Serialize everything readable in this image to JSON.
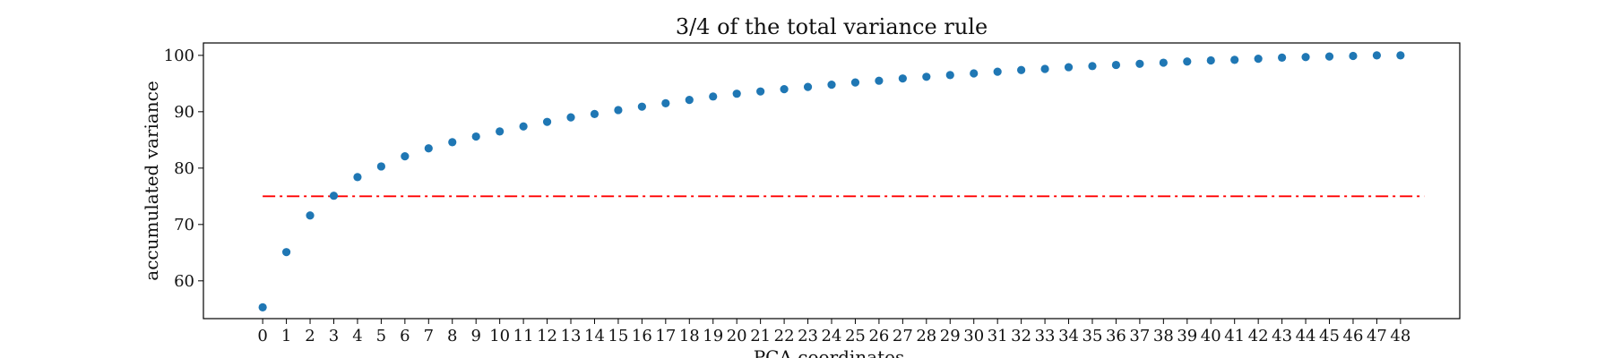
{
  "chart_data": {
    "type": "scatter",
    "title": "3/4 of the total variance rule",
    "xlabel": "PCA coordinates",
    "ylabel": "accumulated variance",
    "x": [
      0,
      1,
      2,
      3,
      4,
      5,
      6,
      7,
      8,
      9,
      10,
      11,
      12,
      13,
      14,
      15,
      16,
      17,
      18,
      19,
      20,
      21,
      22,
      23,
      24,
      25,
      26,
      27,
      28,
      29,
      30,
      31,
      32,
      33,
      34,
      35,
      36,
      37,
      38,
      39,
      40,
      41,
      42,
      43,
      44,
      45,
      46,
      47,
      48
    ],
    "series": [
      {
        "values": [
          55.3,
          65.1,
          71.6,
          75.1,
          78.4,
          80.3,
          82.1,
          83.5,
          84.6,
          85.6,
          86.5,
          87.4,
          88.2,
          89.0,
          89.6,
          90.3,
          90.9,
          91.5,
          92.1,
          92.7,
          93.2,
          93.6,
          94.0,
          94.4,
          94.8,
          95.2,
          95.5,
          95.9,
          96.2,
          96.5,
          96.8,
          97.1,
          97.4,
          97.6,
          97.9,
          98.1,
          98.3,
          98.5,
          98.7,
          98.9,
          99.1,
          99.2,
          99.4,
          99.6,
          99.7,
          99.8,
          99.9,
          100.0,
          100.0
        ],
        "color": "#1f77b4"
      }
    ],
    "reference_line": {
      "y": 75,
      "x_range": [
        0,
        49
      ],
      "color": "#ff0000",
      "style": "dashdot"
    },
    "xticks": [
      "0",
      "1",
      "2",
      "3",
      "4",
      "5",
      "6",
      "7",
      "8",
      "9",
      "10",
      "11",
      "12",
      "13",
      "14",
      "15",
      "16",
      "17",
      "18",
      "19",
      "20",
      "21",
      "22",
      "23",
      "24",
      "25",
      "26",
      "27",
      "28",
      "29",
      "30",
      "31",
      "32",
      "33",
      "34",
      "35",
      "36",
      "37",
      "38",
      "39",
      "40",
      "41",
      "42",
      "43",
      "44",
      "45",
      "46",
      "47",
      "48"
    ],
    "yticks": [
      60,
      70,
      80,
      90,
      100
    ],
    "xlim": [
      -2.5,
      50.5
    ],
    "ylim": [
      53.3,
      102.2
    ],
    "grid": false,
    "legend": "none"
  }
}
